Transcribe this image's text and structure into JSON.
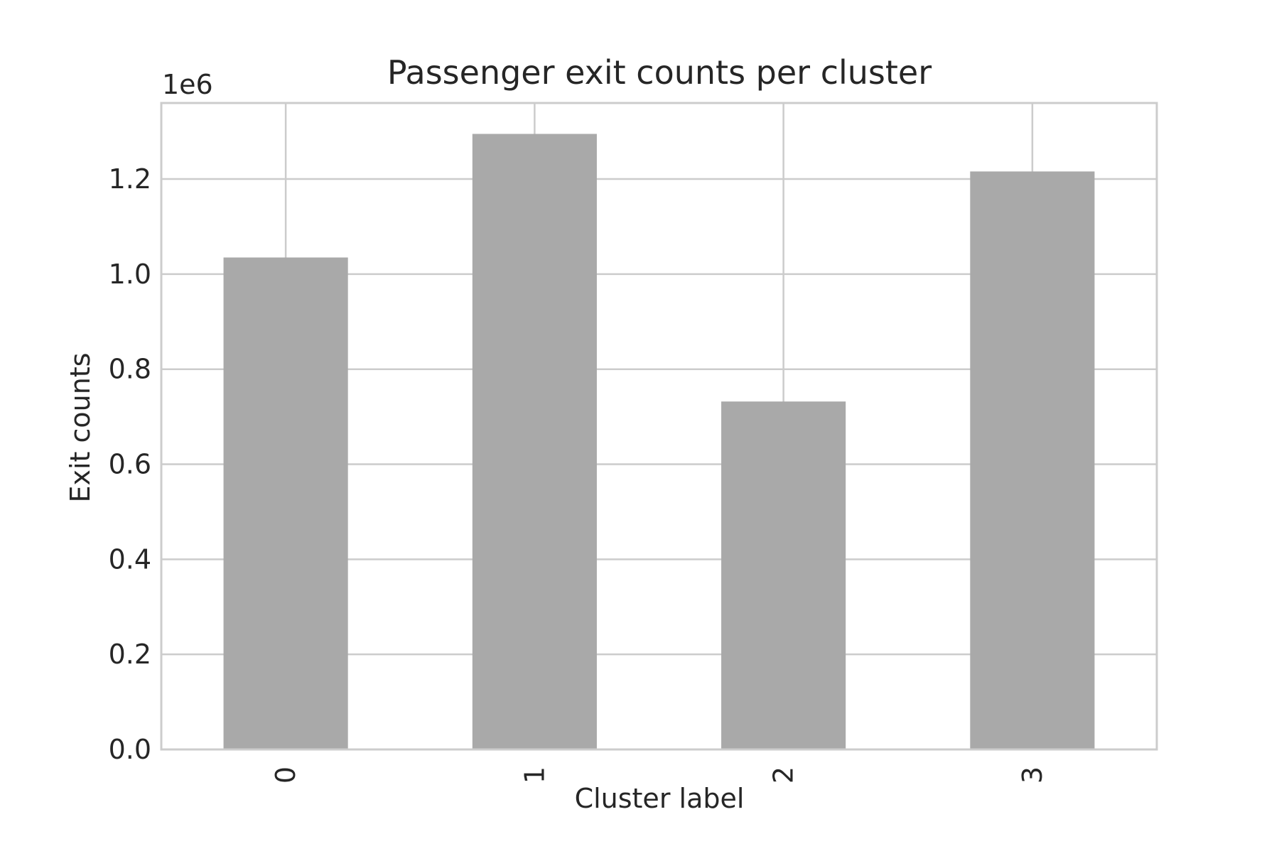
{
  "chart_data": {
    "type": "bar",
    "title": "Passenger exit counts per cluster",
    "xlabel": "Cluster label",
    "ylabel": "Exit counts",
    "offset_label": "1e6",
    "categories": [
      "0",
      "1",
      "2",
      "3"
    ],
    "values": [
      1035000,
      1295000,
      732000,
      1216000
    ],
    "ylim": [
      0,
      1360000
    ],
    "yticks": [
      0,
      200000,
      400000,
      600000,
      800000,
      1000000,
      1200000
    ],
    "ytick_labels": [
      "0.0",
      "0.2",
      "0.4",
      "0.6",
      "0.8",
      "1.0",
      "1.2"
    ],
    "grid": true,
    "bar_color": "#a9a9a9",
    "grid_color": "#cccccc"
  }
}
